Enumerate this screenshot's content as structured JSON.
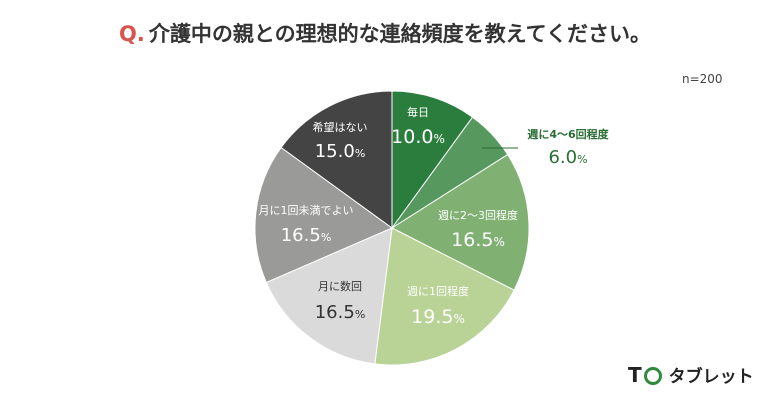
{
  "title": {
    "prefix": "Q.",
    "text": "介護中の親との理想的な連絡頻度を教えてください。"
  },
  "sample": "n=200",
  "logo": {
    "mark": "T",
    "name": "タブレット"
  },
  "chart_data": {
    "type": "pie",
    "unit": "%",
    "start_angle_deg": 0,
    "direction": "clockwise",
    "slices": [
      {
        "label": "毎日",
        "value": 10.0,
        "color": "#2a7d3c"
      },
      {
        "label": "週に4〜6回程度",
        "value": 6.0,
        "color": "#56985d"
      },
      {
        "label": "週に2〜3回程度",
        "value": 16.5,
        "color": "#80b173"
      },
      {
        "label": "週に1回程度",
        "value": 19.5,
        "color": "#b9d296"
      },
      {
        "label": "月に数回",
        "value": 16.5,
        "color": "#dadada"
      },
      {
        "label": "月に1回未満でよい",
        "value": 16.5,
        "color": "#9a9b98"
      },
      {
        "label": "希望はない",
        "value": 15.0,
        "color": "#444444"
      }
    ]
  }
}
